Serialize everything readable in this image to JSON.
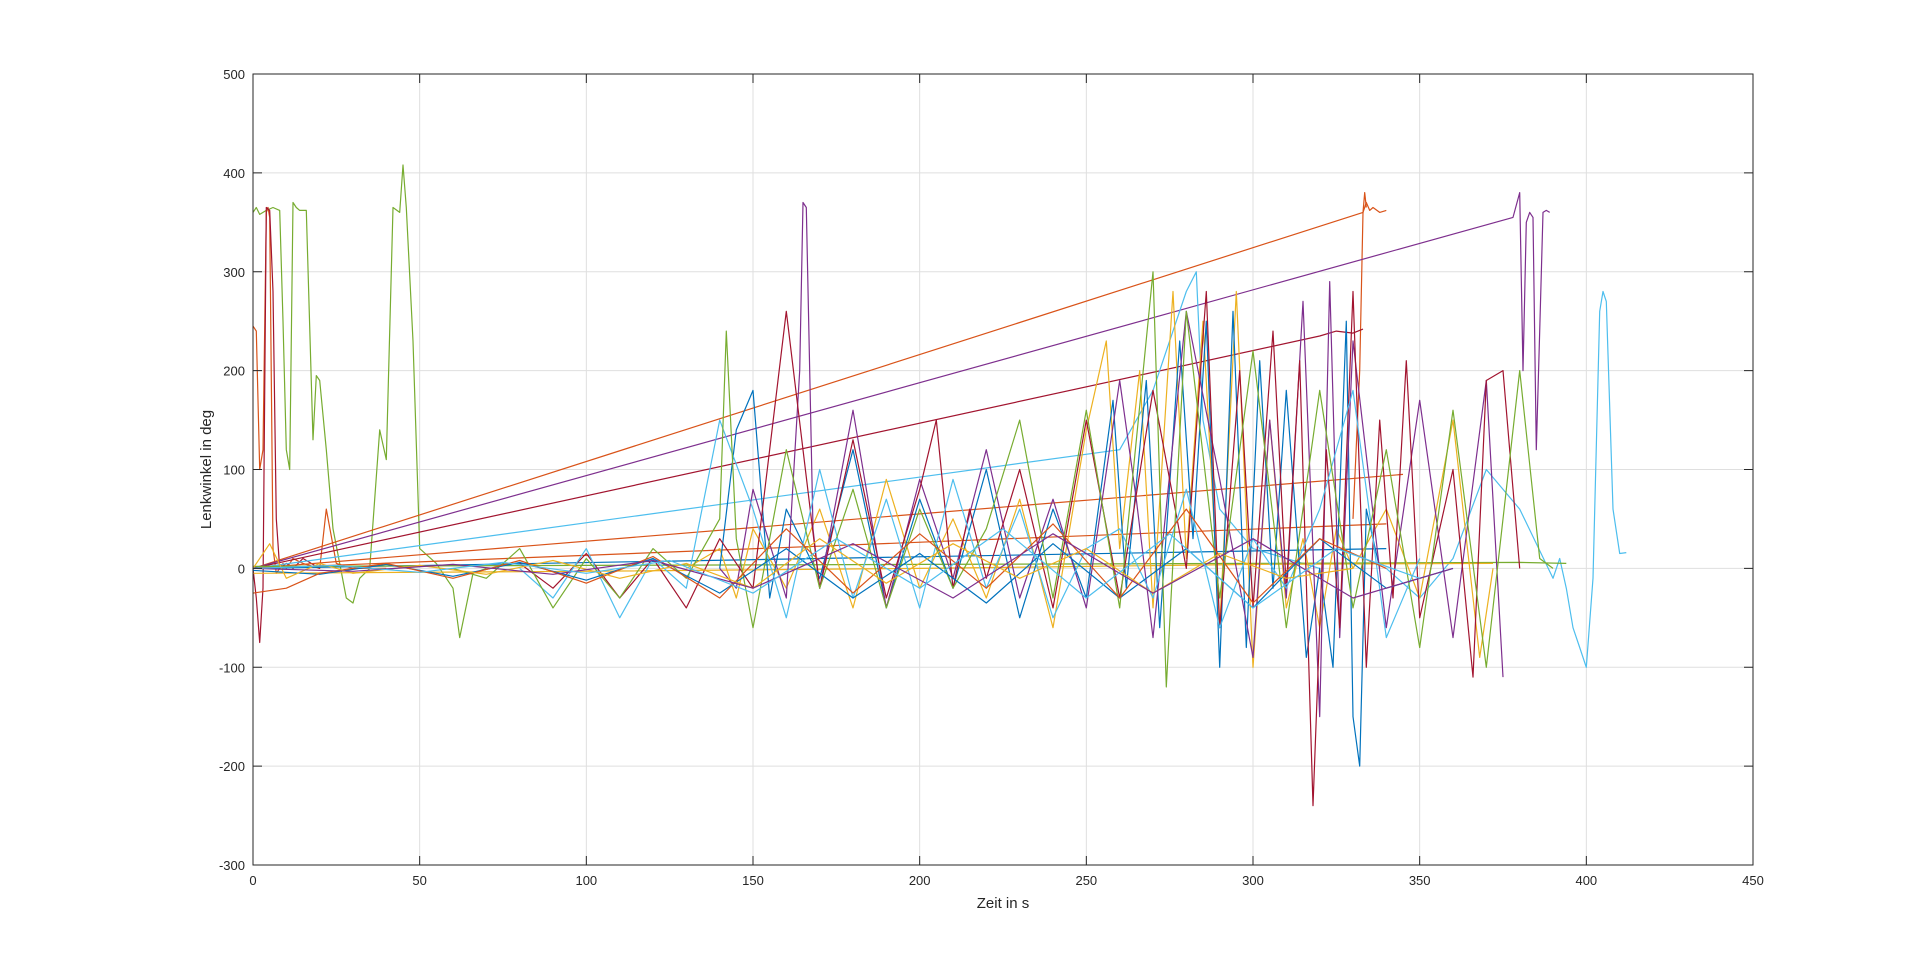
{
  "chart_data": {
    "type": "line",
    "title": "",
    "xlabel": "Zeit in s",
    "ylabel": "Lenkwinkel in deg",
    "xlim": [
      0,
      450
    ],
    "ylim": [
      -300,
      500
    ],
    "xticks": [
      0,
      50,
      100,
      150,
      200,
      250,
      300,
      350,
      400,
      450
    ],
    "yticks": [
      -300,
      -200,
      -100,
      0,
      100,
      200,
      300,
      400,
      500
    ],
    "grid": true,
    "legend": "none",
    "palette": [
      "#0072BD",
      "#D95319",
      "#EDB120",
      "#7E2F8E",
      "#77AC30",
      "#4DBEEE",
      "#A2142F"
    ],
    "series": [
      {
        "color": "#77AC30",
        "x": [
          0,
          1,
          2,
          4,
          6,
          8,
          9,
          10,
          11,
          12,
          13,
          14,
          16,
          18,
          19,
          20,
          22,
          24,
          26,
          28,
          30,
          32,
          35,
          38,
          40,
          42,
          44,
          45,
          46,
          48,
          50,
          55,
          60,
          62,
          66,
          70
        ],
        "y": [
          360,
          365,
          358,
          362,
          365,
          362,
          250,
          120,
          100,
          370,
          365,
          362,
          362,
          130,
          195,
          190,
          120,
          40,
          5,
          -30,
          -35,
          -10,
          0,
          140,
          110,
          365,
          360,
          408,
          365,
          230,
          20,
          5,
          -20,
          -70,
          -5,
          0
        ]
      },
      {
        "color": "#D95319",
        "x": [
          0,
          1,
          2,
          3,
          4,
          4.5,
          5,
          6,
          7,
          8,
          9,
          10,
          12,
          15,
          20,
          22,
          25,
          30,
          40
        ],
        "y": [
          245,
          240,
          100,
          120,
          360,
          365,
          355,
          20,
          -5,
          0,
          5,
          0,
          10,
          5,
          0,
          60,
          5,
          0,
          0
        ]
      },
      {
        "color": "#A2142F",
        "x": [
          0,
          1,
          2,
          3,
          4,
          5,
          6,
          7,
          8,
          10,
          12,
          15,
          20
        ],
        "y": [
          0,
          -30,
          -75,
          -20,
          365,
          362,
          280,
          50,
          0,
          5,
          0,
          10,
          0
        ]
      },
      {
        "color": "#D95319",
        "x": [
          0,
          333,
          334,
          335,
          336,
          338,
          340
        ],
        "y": [
          0,
          360,
          370,
          362,
          365,
          360,
          362
        ]
      },
      {
        "color": "#D95319",
        "x": [
          330,
          332,
          333,
          333.5,
          334
        ],
        "y": [
          50,
          200,
          360,
          380,
          365
        ]
      },
      {
        "color": "#7E2F8E",
        "x": [
          0,
          378,
          380,
          381,
          382,
          383,
          384,
          385,
          386,
          387,
          388,
          389
        ],
        "y": [
          0,
          355,
          380,
          200,
          350,
          360,
          355,
          120,
          240,
          360,
          362,
          360
        ]
      },
      {
        "color": "#A2142F",
        "x": [
          0,
          320,
          325,
          330,
          333
        ],
        "y": [
          0,
          235,
          240,
          238,
          242
        ]
      },
      {
        "color": "#4DBEEE",
        "x": [
          0,
          260,
          270,
          280,
          283,
          285,
          290,
          300,
          310,
          320
        ],
        "y": [
          0,
          120,
          180,
          280,
          300,
          150,
          60,
          20,
          10,
          0
        ]
      },
      {
        "color": "#D95319",
        "x": [
          0,
          345
        ],
        "y": [
          0,
          95
        ]
      },
      {
        "color": "#D95319",
        "x": [
          0,
          340
        ],
        "y": [
          0,
          45
        ]
      },
      {
        "color": "#0072BD",
        "x": [
          0,
          340
        ],
        "y": [
          0,
          20
        ]
      },
      {
        "color": "#4DBEEE",
        "x": [
          340,
          350,
          360,
          370,
          380,
          390,
          392,
          394,
          396,
          398,
          400,
          402,
          404,
          405,
          406,
          408,
          410,
          412
        ],
        "y": [
          0,
          -30,
          10,
          100,
          60,
          -10,
          10,
          -20,
          -60,
          -80,
          -100,
          -10,
          260,
          280,
          270,
          60,
          15,
          16
        ]
      },
      {
        "color": "#77AC30",
        "x": [
          0,
          100,
          200,
          300,
          380,
          394
        ],
        "y": [
          2,
          3,
          4,
          5,
          6,
          5
        ]
      },
      {
        "color": "#EDB120",
        "x": [
          0,
          100,
          200,
          300,
          372
        ],
        "y": [
          -5,
          -3,
          0,
          4,
          5
        ]
      },
      {
        "color": "#EDB120",
        "x": [
          130,
          140,
          145,
          150,
          160,
          170,
          180,
          190,
          200,
          210,
          220,
          230,
          240,
          250,
          256,
          260,
          266,
          270,
          276,
          280,
          285,
          290,
          295,
          300,
          305,
          310,
          315,
          320,
          325,
          330,
          340,
          350,
          360,
          368,
          372
        ],
        "y": [
          0,
          20,
          -30,
          40,
          -20,
          60,
          -40,
          90,
          -20,
          50,
          -30,
          70,
          -60,
          140,
          230,
          20,
          200,
          -40,
          280,
          10,
          250,
          -60,
          280,
          -100,
          150,
          -40,
          30,
          -60,
          40,
          0,
          60,
          -30,
          150,
          -90,
          0
        ]
      },
      {
        "color": "#0072BD",
        "x": [
          140,
          145,
          150,
          155,
          160,
          170,
          180,
          190,
          200,
          210,
          220,
          230,
          240,
          250,
          258,
          262,
          268,
          272,
          278,
          282,
          286,
          290,
          294,
          298,
          302,
          306,
          310,
          316,
          320,
          324,
          328,
          330,
          332,
          334,
          338
        ],
        "y": [
          0,
          140,
          180,
          -30,
          60,
          -10,
          120,
          -40,
          70,
          -20,
          100,
          -50,
          60,
          -30,
          170,
          -20,
          190,
          -60,
          230,
          30,
          250,
          -100,
          260,
          -80,
          210,
          -20,
          180,
          -90,
          0,
          -100,
          250,
          -150,
          -200,
          60,
          0
        ]
      },
      {
        "color": "#7E2F8E",
        "x": [
          140,
          145,
          150,
          160,
          164,
          165,
          166,
          168,
          170,
          180,
          190,
          200,
          210,
          220,
          230,
          240,
          250,
          260,
          265,
          270,
          280,
          290,
          300,
          305,
          310,
          315,
          320,
          323,
          326,
          330,
          340,
          350,
          360,
          370,
          375
        ],
        "y": [
          0,
          -20,
          80,
          -30,
          200,
          370,
          365,
          40,
          -20,
          160,
          -40,
          90,
          -10,
          120,
          -30,
          70,
          -40,
          190,
          70,
          -70,
          260,
          90,
          -90,
          150,
          -30,
          270,
          -150,
          290,
          -70,
          230,
          -60,
          170,
          -70,
          190,
          -110
        ]
      },
      {
        "color": "#A2142F",
        "x": [
          80,
          90,
          100,
          110,
          120,
          130,
          140,
          150,
          160,
          170,
          180,
          190,
          200,
          205,
          210,
          215,
          220,
          230,
          240,
          250,
          260,
          270,
          280,
          286,
          290,
          296,
          300,
          306,
          310,
          314,
          318,
          322,
          326,
          330,
          334,
          338,
          342,
          346,
          350,
          360,
          366,
          370,
          375,
          380
        ],
        "y": [
          5,
          -20,
          15,
          -30,
          10,
          -40,
          30,
          -20,
          260,
          -20,
          130,
          -30,
          80,
          150,
          -20,
          60,
          -10,
          100,
          -40,
          150,
          -30,
          180,
          0,
          280,
          -60,
          200,
          -40,
          240,
          -20,
          210,
          -240,
          120,
          -60,
          280,
          -100,
          150,
          -30,
          210,
          -50,
          100,
          -110,
          190,
          200,
          0
        ]
      },
      {
        "color": "#4DBEEE",
        "x": [
          80,
          90,
          100,
          110,
          120,
          130,
          140,
          150,
          160,
          170,
          180,
          190,
          200,
          210,
          220,
          230,
          240,
          250,
          260,
          270,
          280,
          290,
          300,
          310,
          320,
          330,
          340,
          350
        ],
        "y": [
          0,
          -30,
          20,
          -50,
          10,
          -20,
          150,
          60,
          -50,
          100,
          -30,
          70,
          -40,
          90,
          -20,
          60,
          -50,
          20,
          40,
          -30,
          80,
          -60,
          30,
          -20,
          60,
          180,
          -70,
          10
        ]
      },
      {
        "color": "#77AC30",
        "x": [
          60,
          70,
          80,
          90,
          100,
          110,
          120,
          130,
          140,
          142,
          145,
          150,
          160,
          170,
          180,
          190,
          200,
          210,
          220,
          230,
          240,
          250,
          260,
          270,
          274,
          280,
          290,
          300,
          310,
          320,
          330,
          340,
          350,
          360,
          370,
          380,
          386,
          390
        ],
        "y": [
          0,
          -10,
          20,
          -40,
          10,
          -30,
          20,
          -10,
          50,
          240,
          30,
          -60,
          120,
          -20,
          80,
          -40,
          60,
          -20,
          40,
          150,
          -30,
          160,
          -40,
          300,
          -120,
          260,
          -30,
          220,
          -60,
          180,
          -40,
          120,
          -80,
          160,
          -100,
          200,
          10,
          0
        ]
      },
      {
        "color": "#0072BD",
        "x": [
          0,
          20,
          40,
          60,
          80,
          100,
          120,
          140,
          160,
          180,
          200,
          220,
          240,
          260,
          280,
          300,
          320,
          340,
          360
        ],
        "y": [
          -2,
          -6,
          4,
          -8,
          6,
          -12,
          10,
          -25,
          20,
          -30,
          15,
          -35,
          25,
          -30,
          20,
          -40,
          30,
          -20,
          0
        ]
      },
      {
        "color": "#D95319",
        "x": [
          0,
          10,
          20,
          40,
          60,
          80,
          100,
          120,
          140,
          160,
          180,
          200,
          220,
          240,
          260,
          280,
          300,
          320,
          340
        ],
        "y": [
          -25,
          -20,
          -5,
          5,
          -10,
          8,
          -15,
          12,
          -30,
          40,
          -25,
          35,
          -20,
          45,
          -30,
          60,
          -35,
          30,
          0
        ]
      },
      {
        "color": "#EDB120",
        "x": [
          0,
          5,
          10,
          20,
          30,
          50,
          70,
          90,
          110,
          130,
          150,
          170,
          190,
          210,
          230,
          250,
          270,
          290,
          310,
          330
        ],
        "y": [
          0,
          25,
          -10,
          5,
          -5,
          3,
          -6,
          8,
          -10,
          5,
          -20,
          30,
          -15,
          25,
          -10,
          20,
          -25,
          15,
          -10,
          0
        ]
      },
      {
        "color": "#7E2F8E",
        "x": [
          0,
          30,
          60,
          90,
          120,
          150,
          180,
          210,
          240,
          270,
          300,
          330,
          360
        ],
        "y": [
          0,
          -3,
          4,
          -6,
          8,
          -20,
          25,
          -30,
          35,
          -25,
          30,
          -30,
          0
        ]
      },
      {
        "color": "#4DBEEE",
        "x": [
          0,
          25,
          50,
          75,
          100,
          125,
          150,
          175,
          200,
          225,
          250,
          275,
          300,
          325,
          350
        ],
        "y": [
          0,
          3,
          -4,
          6,
          -5,
          8,
          -25,
          30,
          -20,
          40,
          -30,
          35,
          -40,
          20,
          -10
        ]
      }
    ]
  }
}
